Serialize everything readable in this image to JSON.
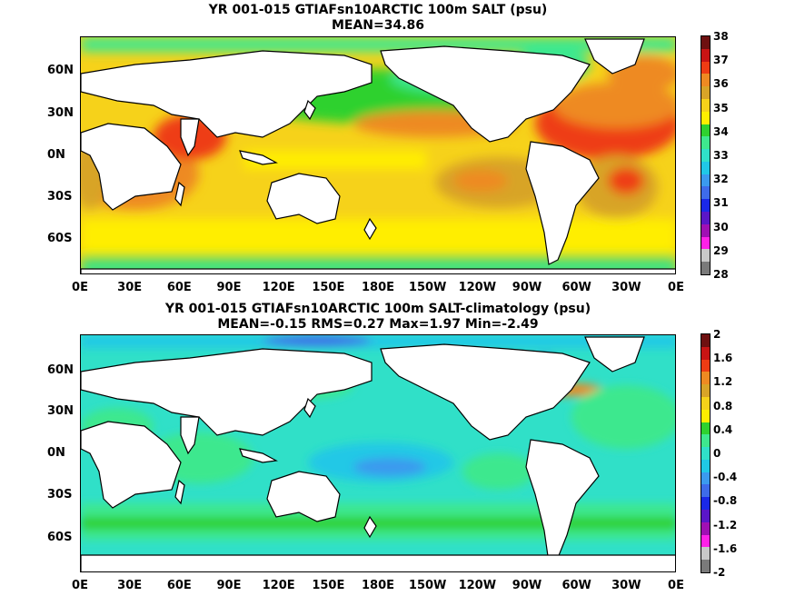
{
  "panels": [
    {
      "id": "top",
      "title_line1": "YR 001-015 GTIAFsn10ARCTIC 100m SALT (psu)",
      "title_line2": "MEAN=34.86",
      "y_ticks": [
        "60N",
        "30N",
        "0N",
        "30S",
        "60S"
      ],
      "x_ticks": [
        "0E",
        "30E",
        "60E",
        "90E",
        "120E",
        "150E",
        "180E",
        "150W",
        "120W",
        "90W",
        "60W",
        "30W",
        "0E"
      ],
      "colorbar": {
        "labels": [
          "38",
          "37",
          "36",
          "35",
          "34",
          "33",
          "32",
          "31",
          "30",
          "29",
          "28"
        ],
        "colors": [
          "#6e1010",
          "#c81414",
          "#ee3c14",
          "#ee8a22",
          "#d8a428",
          "#f6d21a",
          "#ffee00",
          "#2fd12f",
          "#3ee88e",
          "#30e0c8",
          "#20c8e6",
          "#3b9aee",
          "#3e6bea",
          "#1a28e8",
          "#5a16c8",
          "#a00fb4",
          "#ff20e8",
          "#c8c8c8",
          "#7a7a7a"
        ]
      }
    },
    {
      "id": "bottom",
      "title_line1": "YR 001-015 GTIAFsn10ARCTIC 100m SALT-climatology (psu)",
      "title_line2": "MEAN=-0.15   RMS=0.27   Max=1.97   Min=-2.49",
      "y_ticks": [
        "60N",
        "30N",
        "0N",
        "30S",
        "60S"
      ],
      "x_ticks": [
        "0E",
        "30E",
        "60E",
        "90E",
        "120E",
        "150E",
        "180E",
        "150W",
        "120W",
        "90W",
        "60W",
        "30W",
        "0E"
      ],
      "colorbar": {
        "labels": [
          "2",
          "1.6",
          "1.2",
          "0.8",
          "0.4",
          "0",
          "-0.4",
          "-0.8",
          "-1.2",
          "-1.6",
          "-2"
        ],
        "colors": [
          "#6e1010",
          "#c81414",
          "#ee3c14",
          "#ee8a22",
          "#d8a428",
          "#f6d21a",
          "#ffee00",
          "#2fd12f",
          "#3ee88e",
          "#30e0c8",
          "#20c8e6",
          "#3b9aee",
          "#3e6bea",
          "#1a28e8",
          "#5a16c8",
          "#a00fb4",
          "#ff20e8",
          "#c8c8c8",
          "#7a7a7a"
        ]
      }
    }
  ]
}
